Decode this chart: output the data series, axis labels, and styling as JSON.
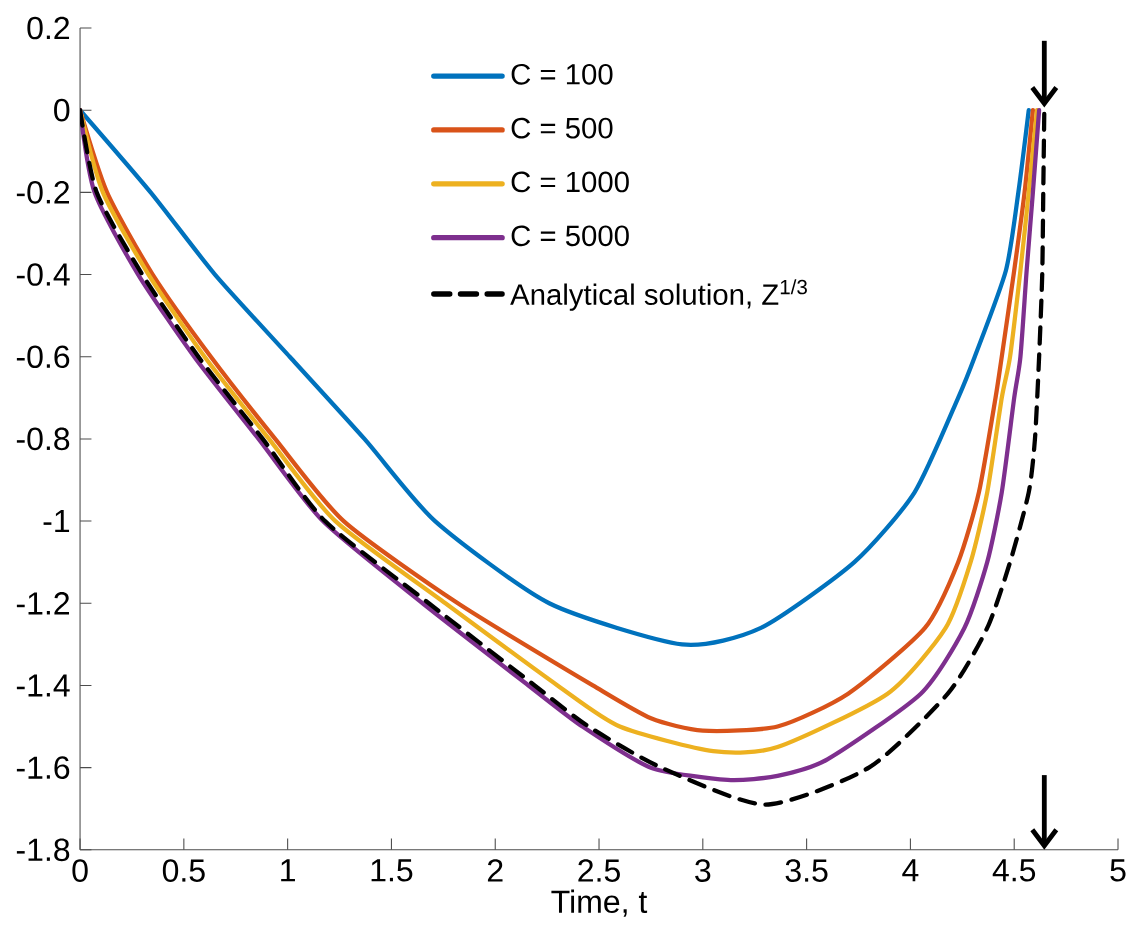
{
  "chart_data": {
    "type": "line",
    "xlabel": "Time, t",
    "xlim": [
      0,
      5
    ],
    "ylim": [
      -1.8,
      0.2
    ],
    "xticks": [
      0,
      0.5,
      1,
      1.5,
      2,
      2.5,
      3,
      3.5,
      4,
      4.5,
      5
    ],
    "yticks": [
      -1.8,
      -1.6,
      -1.4,
      -1.2,
      -1,
      -0.8,
      -0.6,
      -0.4,
      -0.2,
      0,
      0.2
    ],
    "legend": "top",
    "grid": false,
    "marker": "none",
    "series": [
      {
        "name": "C = 100",
        "color": "#0072bd",
        "line_style": "solid",
        "x": [
          0,
          0.34,
          0.65,
          1.01,
          1.37,
          1.71,
          2.26,
          2.9,
          3.28,
          3.73,
          4.02,
          4.23,
          4.31,
          4.46,
          4.52,
          4.57
        ],
        "values": [
          0,
          -0.2,
          -0.4,
          -0.6,
          -0.8,
          -1,
          -1.2,
          -1.3,
          -1.26,
          -1.1,
          -0.93,
          -0.7,
          -0.6,
          -0.39,
          -0.2,
          0
        ]
      },
      {
        "name": "C = 500",
        "color": "#d95319",
        "line_style": "solid",
        "x": [
          0,
          0.13,
          0.35,
          0.63,
          0.94,
          1.27,
          1.82,
          2.47,
          2.75,
          3,
          3.36,
          3.7,
          4.07,
          4.23,
          4.33,
          4.41,
          4.44,
          4.5,
          4.55,
          4.59
        ],
        "values": [
          0,
          -0.2,
          -0.4,
          -0.6,
          -0.8,
          -1,
          -1.2,
          -1.4,
          -1.48,
          -1.51,
          -1.5,
          -1.42,
          -1.26,
          -1.1,
          -0.93,
          -0.7,
          -0.6,
          -0.39,
          -0.2,
          0
        ]
      },
      {
        "name": "C = 1000",
        "color": "#edb120",
        "line_style": "solid",
        "x": [
          0,
          0.11,
          0.33,
          0.6,
          0.91,
          1.23,
          1.76,
          2.3,
          2.6,
          3.05,
          3.36,
          3.89,
          4.17,
          4.29,
          4.37,
          4.44,
          4.48,
          4.53,
          4.57,
          4.61
        ],
        "values": [
          0,
          -0.2,
          -0.4,
          -0.6,
          -0.8,
          -1,
          -1.2,
          -1.4,
          -1.5,
          -1.56,
          -1.55,
          -1.42,
          -1.26,
          -1.1,
          -0.93,
          -0.7,
          -0.6,
          -0.39,
          -0.2,
          0
        ]
      },
      {
        "name": "C = 5000",
        "color": "#7e2f8e",
        "line_style": "solid",
        "x": [
          0,
          0.07,
          0.28,
          0.55,
          0.86,
          1.17,
          1.65,
          2.16,
          2.42,
          2.75,
          3.12,
          3.36,
          3.6,
          4.05,
          4.26,
          4.37,
          4.44,
          4.5,
          4.53,
          4.56,
          4.59,
          4.62
        ],
        "values": [
          0,
          -0.2,
          -0.4,
          -0.6,
          -0.8,
          -1,
          -1.2,
          -1.4,
          -1.5,
          -1.6,
          -1.63,
          -1.62,
          -1.58,
          -1.42,
          -1.26,
          -1.1,
          -0.93,
          -0.7,
          -0.6,
          -0.39,
          -0.2,
          0
        ]
      },
      {
        "name": "Analytical solution, Z$^{1/3}$",
        "color": "#000000",
        "line_style": "dashed",
        "x": [
          0,
          0.08,
          0.3,
          0.57,
          0.88,
          1.18,
          1.68,
          2.19,
          2.45,
          2.8,
          3.3,
          3.8,
          4.18,
          4.37,
          4.48,
          4.57,
          4.6,
          4.62,
          4.635,
          4.64,
          4.645
        ],
        "values": [
          0,
          -0.2,
          -0.4,
          -0.6,
          -0.8,
          -1,
          -1.2,
          -1.4,
          -1.5,
          -1.6,
          -1.69,
          -1.6,
          -1.42,
          -1.26,
          -1.1,
          -0.93,
          -0.8,
          -0.6,
          -0.4,
          -0.2,
          0
        ]
      }
    ]
  }
}
